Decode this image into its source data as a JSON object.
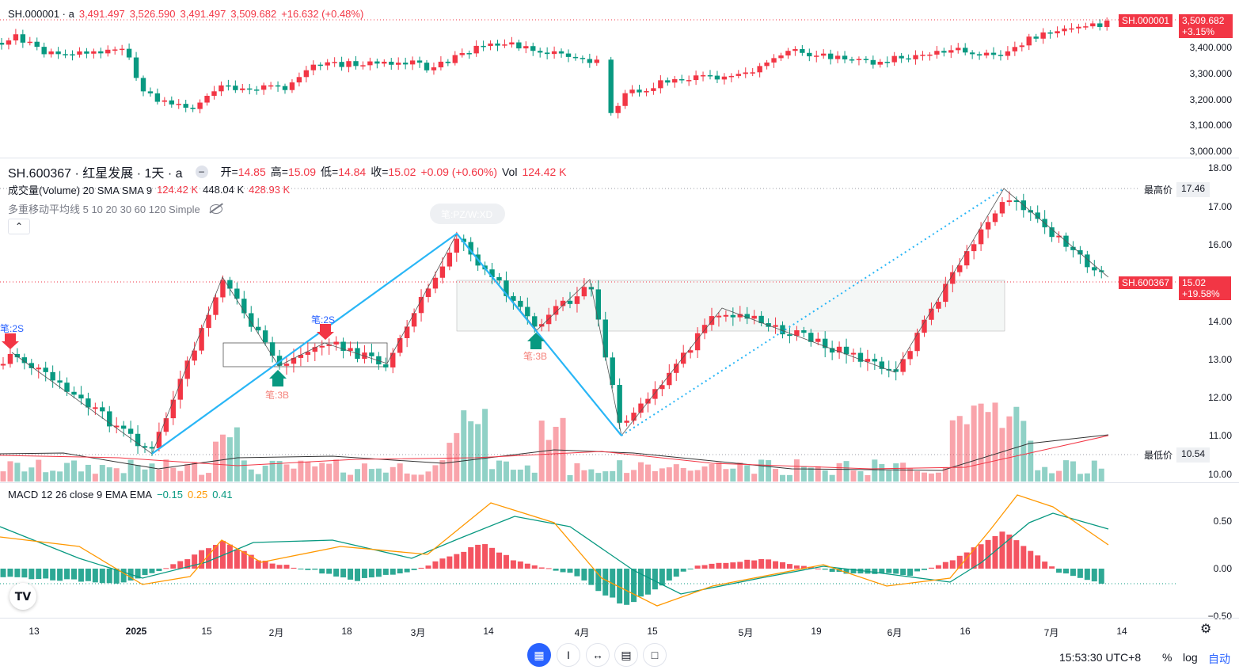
{
  "index_pane": {
    "legend": {
      "symbol": "SH.000001 · a",
      "open": "3,491.497",
      "high": "3,526.590",
      "low": "3,491.497",
      "close": "3,509.682",
      "change": "+16.632 (+0.48%)"
    },
    "yticks": [
      "3,400.000",
      "3,300.000",
      "3,200.000",
      "3,100.000",
      "3,000.000"
    ],
    "price_tag": {
      "symbol": "SH.000001",
      "value": "3,509.682",
      "pct": "+3.15%"
    }
  },
  "main_pane": {
    "title": "SH.600367 · 红星发展 · 1天 · a",
    "ohlc": {
      "open_label": "开=",
      "open": "14.85",
      "high_label": "高=",
      "high": "15.09",
      "low_label": "低=",
      "low": "14.84",
      "close_label": "收=",
      "close": "15.02",
      "change": "+0.09 (+0.60%)",
      "vol_label": "Vol",
      "vol": "124.42 K"
    },
    "volume_legend": {
      "name": "成交量(Volume) 20 SMA SMA 9",
      "v1": "124.42 K",
      "v2": "448.04 K",
      "v3": "428.93 K"
    },
    "ma_legend": "多重移动平均线 5 10 20 30 60 120 Simple",
    "yticks": [
      "18.00",
      "17.00",
      "16.00",
      "15.00",
      "14.00",
      "13.00",
      "12.00",
      "11.00",
      "10.00"
    ],
    "high_tag": {
      "label": "最高价",
      "value": "17.46"
    },
    "low_tag": {
      "label": "最低价",
      "value": "10.54"
    },
    "price_tag": {
      "symbol": "SH.600367",
      "value": "15.02",
      "pct": "+19.58%"
    },
    "annotations": {
      "bi_2s_a": "笔:2S",
      "bi_2s_b": "笔:2S",
      "bi_3b_a": "笔:3B",
      "bi_3b_b": "笔:3B",
      "bi_pz": "笔:PZ/W:XD"
    }
  },
  "macd_pane": {
    "legend": {
      "name": "MACD 12 26 close 9 EMA EMA",
      "hist": "−0.15",
      "signal": "0.25",
      "macd": "0.41"
    },
    "yticks": [
      "0.50",
      "0.00",
      "−0.50"
    ]
  },
  "xaxis": [
    "13",
    "2025",
    "15",
    "2月",
    "18",
    "3月",
    "14",
    "4月",
    "15",
    "5月",
    "19",
    "6月",
    "16",
    "7月",
    "14"
  ],
  "bottom_bar": {
    "time": "15:53:30 UTC+8",
    "percent": "%",
    "log": "log",
    "auto": "自动"
  },
  "colors": {
    "up": "#f23645",
    "down": "#089981",
    "accent": "#2962ff",
    "pen": "#29b6f6"
  },
  "chart_data": {
    "type": "candlestick",
    "series": [
      {
        "name": "SH.600367",
        "last_close": 15.02,
        "high": 17.46,
        "low": 10.54
      },
      {
        "name": "SH.000001",
        "last_close": 3509.682
      }
    ]
  }
}
